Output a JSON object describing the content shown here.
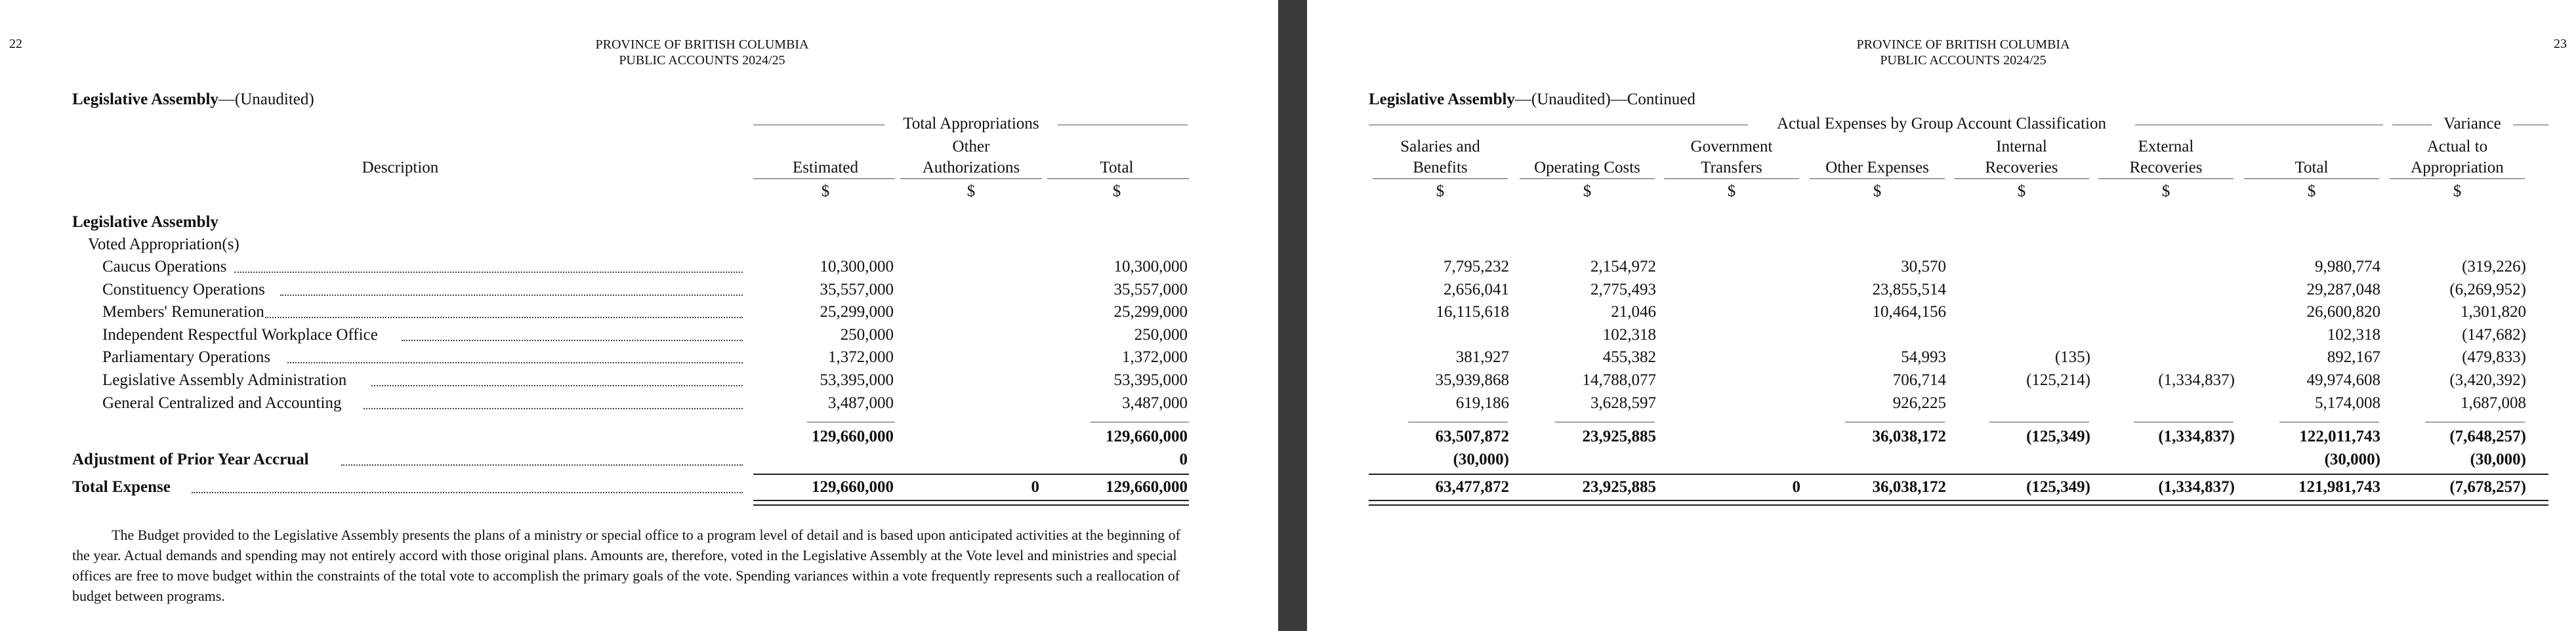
{
  "left_page": {
    "page_number": "22",
    "header_line1": "PROVINCE OF BRITISH COLUMBIA",
    "header_line2": "PUBLIC ACCOUNTS 2024/25",
    "title_bold": "Legislative Assembly",
    "title_rest": "—(Unaudited)",
    "group_header": "Total Appropriations",
    "col_description": "Description",
    "col_estimated": "Estimated",
    "col_other_1": "Other",
    "col_other_2": "Authorizations",
    "col_total": "Total",
    "currency": "$",
    "section_heading": "Legislative Assembly",
    "subsection_heading": "Voted Appropriation(s)",
    "rows": [
      {
        "label": "Caucus Operations",
        "estimated": "10,300,000",
        "other": "",
        "total": "10,300,000"
      },
      {
        "label": "Constituency Operations",
        "estimated": "35,557,000",
        "other": "",
        "total": "35,557,000"
      },
      {
        "label": "Members' Remuneration",
        "estimated": "25,299,000",
        "other": "",
        "total": "25,299,000"
      },
      {
        "label": "Independent Respectful Workplace Office",
        "estimated": "250,000",
        "other": "",
        "total": "250,000"
      },
      {
        "label": "Parliamentary Operations",
        "estimated": "1,372,000",
        "other": "",
        "total": "1,372,000"
      },
      {
        "label": "Legislative Assembly Administration",
        "estimated": "53,395,000",
        "other": "",
        "total": "53,395,000"
      },
      {
        "label": "General Centralized and Accounting",
        "estimated": "3,487,000",
        "other": "",
        "total": "3,487,000"
      }
    ],
    "subtotal": {
      "estimated": "129,660,000",
      "other": "",
      "total": "129,660,000"
    },
    "adjustment": {
      "label": "Adjustment of Prior Year Accrual",
      "estimated": "",
      "other": "",
      "total": "0"
    },
    "total_expense": {
      "label": "Total Expense",
      "estimated": "129,660,000",
      "other": "0",
      "total": "129,660,000"
    },
    "footnote": "The Budget provided to the Legislative Assembly presents the plans of a ministry or special office to a program level of detail and is based upon anticipated activities at the beginning of the year. Actual demands and spending may not entirely accord with those original plans. Amounts are, therefore, voted in the Legislative Assembly at the Vote level and ministries and special offices are free to move budget within the constraints of the total vote to accomplish the primary goals of the vote. Spending variances within a vote frequently represents such a reallocation of budget between programs."
  },
  "right_page": {
    "page_number": "23",
    "header_line1": "PROVINCE OF BRITISH COLUMBIA",
    "header_line2": "PUBLIC ACCOUNTS 2024/25",
    "title_bold": "Legislative Assembly",
    "title_rest": "—(Unaudited)—Continued",
    "group_header": "Actual Expenses by Group Account Classification",
    "variance_header": "Variance",
    "columns": [
      {
        "line1": "Salaries and",
        "line2": "Benefits"
      },
      {
        "line1": "",
        "line2": "Operating Costs"
      },
      {
        "line1": "Government",
        "line2": "Transfers"
      },
      {
        "line1": "",
        "line2": "Other Expenses"
      },
      {
        "line1": "Internal",
        "line2": "Recoveries"
      },
      {
        "line1": "External",
        "line2": "Recoveries"
      },
      {
        "line1": "",
        "line2": "Total"
      },
      {
        "line1": "Actual to",
        "line2": "Appropriation"
      }
    ],
    "currency": "$",
    "rows": [
      [
        "7,795,232",
        "2,154,972",
        "",
        "30,570",
        "",
        "",
        "9,980,774",
        "(319,226)"
      ],
      [
        "2,656,041",
        "2,775,493",
        "",
        "23,855,514",
        "",
        "",
        "29,287,048",
        "(6,269,952)"
      ],
      [
        "16,115,618",
        "21,046",
        "",
        "10,464,156",
        "",
        "",
        "26,600,820",
        "1,301,820"
      ],
      [
        "",
        "102,318",
        "",
        "",
        "",
        "",
        "102,318",
        "(147,682)"
      ],
      [
        "381,927",
        "455,382",
        "",
        "54,993",
        "(135)",
        "",
        "892,167",
        "(479,833)"
      ],
      [
        "35,939,868",
        "14,788,077",
        "",
        "706,714",
        "(125,214)",
        "(1,334,837)",
        "49,974,608",
        "(3,420,392)"
      ],
      [
        "619,186",
        "3,628,597",
        "",
        "926,225",
        "",
        "",
        "5,174,008",
        "1,687,008"
      ]
    ],
    "subtotal": [
      "63,507,872",
      "23,925,885",
      "",
      "36,038,172",
      "(125,349)",
      "(1,334,837)",
      "122,011,743",
      "(7,648,257)"
    ],
    "adjustment": [
      "(30,000)",
      "",
      "",
      "",
      "",
      "",
      "(30,000)",
      "(30,000)"
    ],
    "total_expense": [
      "63,477,872",
      "23,925,885",
      "0",
      "36,038,172",
      "(125,349)",
      "(1,334,837)",
      "121,981,743",
      "(7,678,257)"
    ]
  }
}
